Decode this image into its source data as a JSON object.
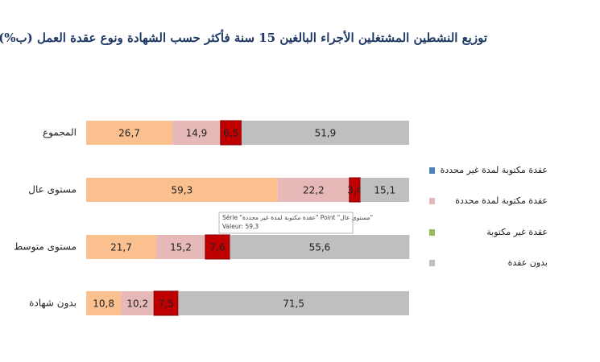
{
  "chart_data": {
    "type": "stacked-barh",
    "title": "توزيع النشطين المشتغلين  الأجراء البالغين 15 سنة فأكثر حسب الشهادة ونوع عقدة العمل (ب%)",
    "categories": [
      "المجموع",
      "مستوى عال",
      "مستوى متوسط",
      "بدون شهادة"
    ],
    "xlim": [
      0,
      100
    ],
    "series": [
      {
        "name": "عقدة مكتوبة لمدة غير محددة",
        "color": "#fac090",
        "legend_color": "#4f81bd",
        "values": [
          26.7,
          59.3,
          21.7,
          10.8
        ],
        "value_labels": [
          "26,7",
          "59,3",
          "21,7",
          "10,8"
        ]
      },
      {
        "name": "عقدة مكتوبة لمدة  محددة",
        "color": "#e6b9b8",
        "legend_color": "#e6b9b8",
        "values": [
          14.9,
          22.2,
          15.2,
          10.2
        ],
        "value_labels": [
          "14,9",
          "22,2",
          "15,2",
          "10,2"
        ]
      },
      {
        "name": "عقدة غير مكتوبة",
        "color": "#c00000",
        "legend_color": "#9bbb59",
        "values": [
          6.5,
          3.4,
          7.6,
          7.5
        ],
        "value_labels": [
          "6,5",
          "3,4",
          "7,6",
          "7,5"
        ]
      },
      {
        "name": "بدون عقدة",
        "color": "#bfbfbf",
        "legend_color": "#bfbfbf",
        "values": [
          51.9,
          15.1,
          55.6,
          71.5
        ],
        "value_labels": [
          "51,9",
          "15,1",
          "55,6",
          "71,5"
        ]
      }
    ],
    "tooltip": [
      "Série \"عقدة مكتوبة لمدة غير محددة\" Point \"مستوى عال\"",
      "Valeur: 59,3"
    ]
  }
}
